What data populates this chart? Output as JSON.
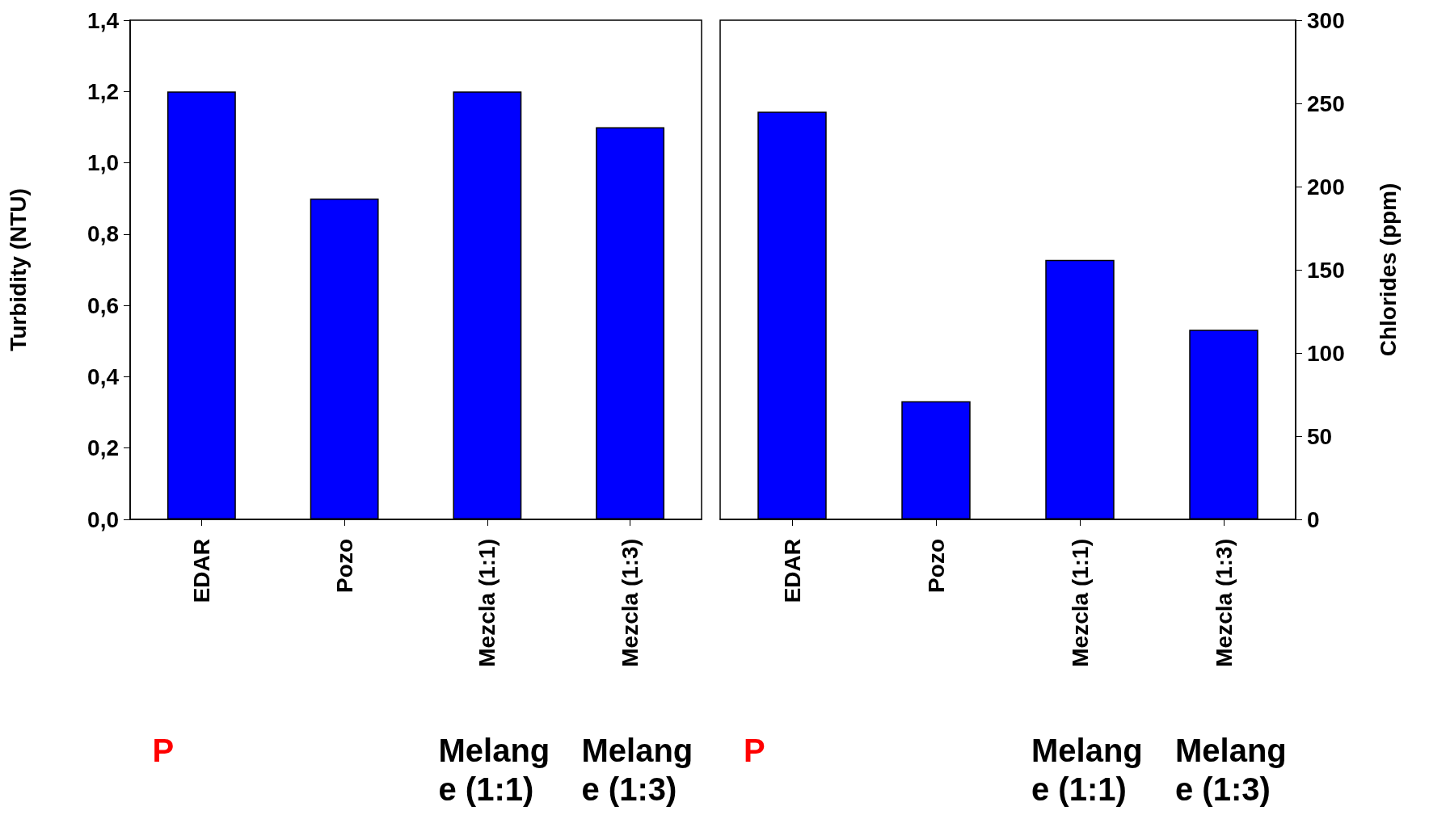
{
  "chart_data": [
    {
      "type": "bar",
      "categories": [
        "EDAR",
        "Pozo",
        "Mezcla (1:1)",
        "Mezcla (1:3)"
      ],
      "ylabel": "Turbidity (NTU)",
      "series": [
        {
          "color": "#0000ff",
          "values": [
            1.2,
            0.9,
            1.2,
            1.1
          ]
        }
      ],
      "ylim": [
        0,
        1.4
      ],
      "yticks": [
        {
          "value": 0,
          "label": "0,0"
        },
        {
          "value": 0.2,
          "label": "0,2"
        },
        {
          "value": 0.4,
          "label": "0,4"
        },
        {
          "value": 0.6,
          "label": "0,6"
        },
        {
          "value": 0.8,
          "label": "0,8"
        },
        {
          "value": 1.0,
          "label": "1,0"
        },
        {
          "value": 1.2,
          "label": "1,2"
        },
        {
          "value": 1.4,
          "label": "1,4"
        }
      ],
      "annotations": [
        "P",
        "Melange (1:1)",
        "Melange (1:3)"
      ]
    },
    {
      "type": "bar",
      "categories": [
        "EDAR",
        "Pozo",
        "Mezcla (1:1)",
        "Mezcla (1:3)"
      ],
      "y2label": "Chlorides (ppm)",
      "series": [
        {
          "color": "#0000ff",
          "values": [
            245,
            71,
            156,
            114
          ],
          "axis": "y2"
        }
      ],
      "y2lim": [
        0,
        300
      ],
      "y2ticks": [
        0,
        50,
        100,
        150,
        200,
        250,
        300
      ],
      "annotations": [
        "P",
        "Melange (1:1)",
        "Melange (1:3)"
      ]
    }
  ]
}
